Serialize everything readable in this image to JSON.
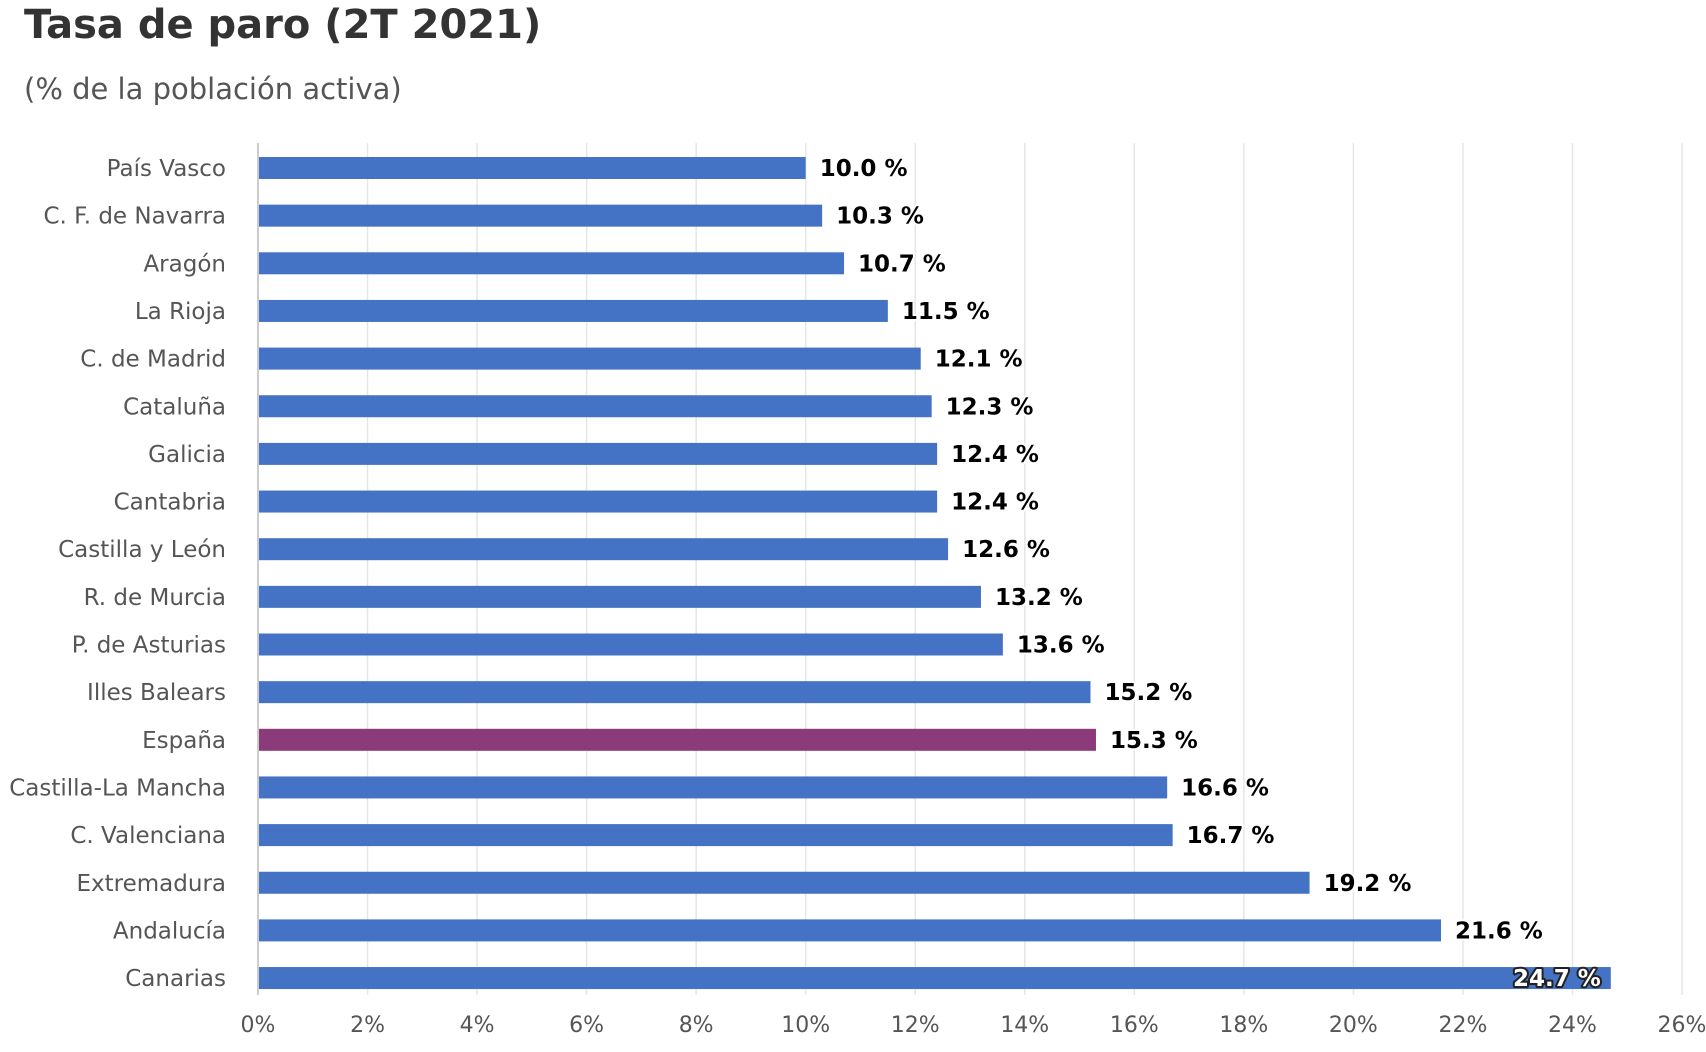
{
  "chart_data": {
    "type": "bar",
    "orientation": "horizontal",
    "title": "Tasa de paro (2T 2021)",
    "subtitle": "(% de la población activa)",
    "categories": [
      "País Vasco",
      "C. F. de Navarra",
      "Aragón",
      "La Rioja",
      "C. de Madrid",
      "Cataluña",
      "Galicia",
      "Cantabria",
      "Castilla y León",
      "R. de Murcia",
      "P. de Asturias",
      "Illes Balears",
      "España",
      "Castilla-La Mancha",
      "C. Valenciana",
      "Extremadura",
      "Andalucía",
      "Canarias"
    ],
    "values": [
      10.0,
      10.3,
      10.7,
      11.5,
      12.1,
      12.3,
      12.4,
      12.4,
      12.6,
      13.2,
      13.6,
      15.2,
      15.3,
      16.6,
      16.7,
      19.2,
      21.6,
      24.7
    ],
    "data_labels": [
      "10.0 %",
      "10.3 %",
      "10.7 %",
      "11.5 %",
      "12.1 %",
      "12.3 %",
      "12.4 %",
      "12.4 %",
      "12.6 %",
      "13.2 %",
      "13.6 %",
      "15.2 %",
      "15.3 %",
      "16.6 %",
      "16.7 %",
      "19.2 %",
      "21.6 %",
      "24.7 %"
    ],
    "highlight_category": "España",
    "xlim": [
      0,
      26
    ],
    "x_ticks": [
      0,
      2,
      4,
      6,
      8,
      10,
      12,
      14,
      16,
      18,
      20,
      22,
      24,
      26
    ],
    "x_tick_labels": [
      "0%",
      "2%",
      "4%",
      "6%",
      "8%",
      "10%",
      "12%",
      "14%",
      "16%",
      "18%",
      "20%",
      "22%",
      "24%",
      "26%"
    ],
    "grid": true,
    "legend": false,
    "colors": {
      "bar": "#4472c4",
      "highlight": "#8b3a7a",
      "grid": "#e6e6e6",
      "axis": "#cccccc"
    }
  }
}
